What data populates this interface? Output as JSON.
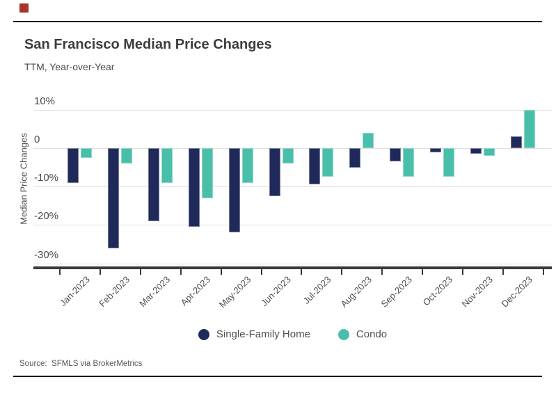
{
  "page": {
    "background_color": "#FFFFFF",
    "rule_color": "#141414",
    "marker_color": "#A93327"
  },
  "header": {
    "title": "San Francisco Median Price Changes",
    "subtitle": "TTM, Year-over-Year"
  },
  "source": {
    "label": "Source:  SFMLS via BrokerMetrics"
  },
  "legend": [
    {
      "label": "Single-Family Home",
      "color": "#1F2A5A"
    },
    {
      "label": "Condo",
      "color": "#49BFAA"
    }
  ],
  "chart_data": {
    "type": "bar",
    "title": "San Francisco Median Price Changes",
    "subtitle": "TTM, Year-over-Year",
    "xlabel": "",
    "ylabel": "Median Price Changes",
    "categories": [
      "Jan-2023",
      "Feb-2023",
      "Mar-2023",
      "Apr-2023",
      "May-2023",
      "Jun-2023",
      "Jul-2023",
      "Aug-2023",
      "Sep-2023",
      "Oct-2023",
      "Nov-2023",
      "Dec-2023"
    ],
    "series": [
      {
        "name": "Single-Family Home",
        "color": "#1F2A5A",
        "values": [
          -9,
          -26,
          -19,
          -20.5,
          -22,
          -12.5,
          -9.5,
          -5,
          -3.5,
          -1,
          -1.5,
          3
        ]
      },
      {
        "name": "Condo",
        "color": "#49BFAA",
        "values": [
          -2.5,
          -4,
          -9,
          -13,
          -9,
          -4,
          -7.5,
          4,
          -7.5,
          -7.5,
          -2,
          10
        ]
      }
    ],
    "yticks": [
      {
        "value": 10,
        "label": "10%"
      },
      {
        "value": 0,
        "label": "0"
      },
      {
        "value": -10,
        "label": "-10%"
      },
      {
        "value": -20,
        "label": "-20%"
      },
      {
        "value": -30,
        "label": "-30%"
      }
    ],
    "ylim": [
      -30,
      10
    ],
    "unit": "%",
    "grid": true,
    "gridline_color": "#E0E0E0",
    "axis_line_color": "#3A3A3A",
    "legend_position": "bottom"
  }
}
